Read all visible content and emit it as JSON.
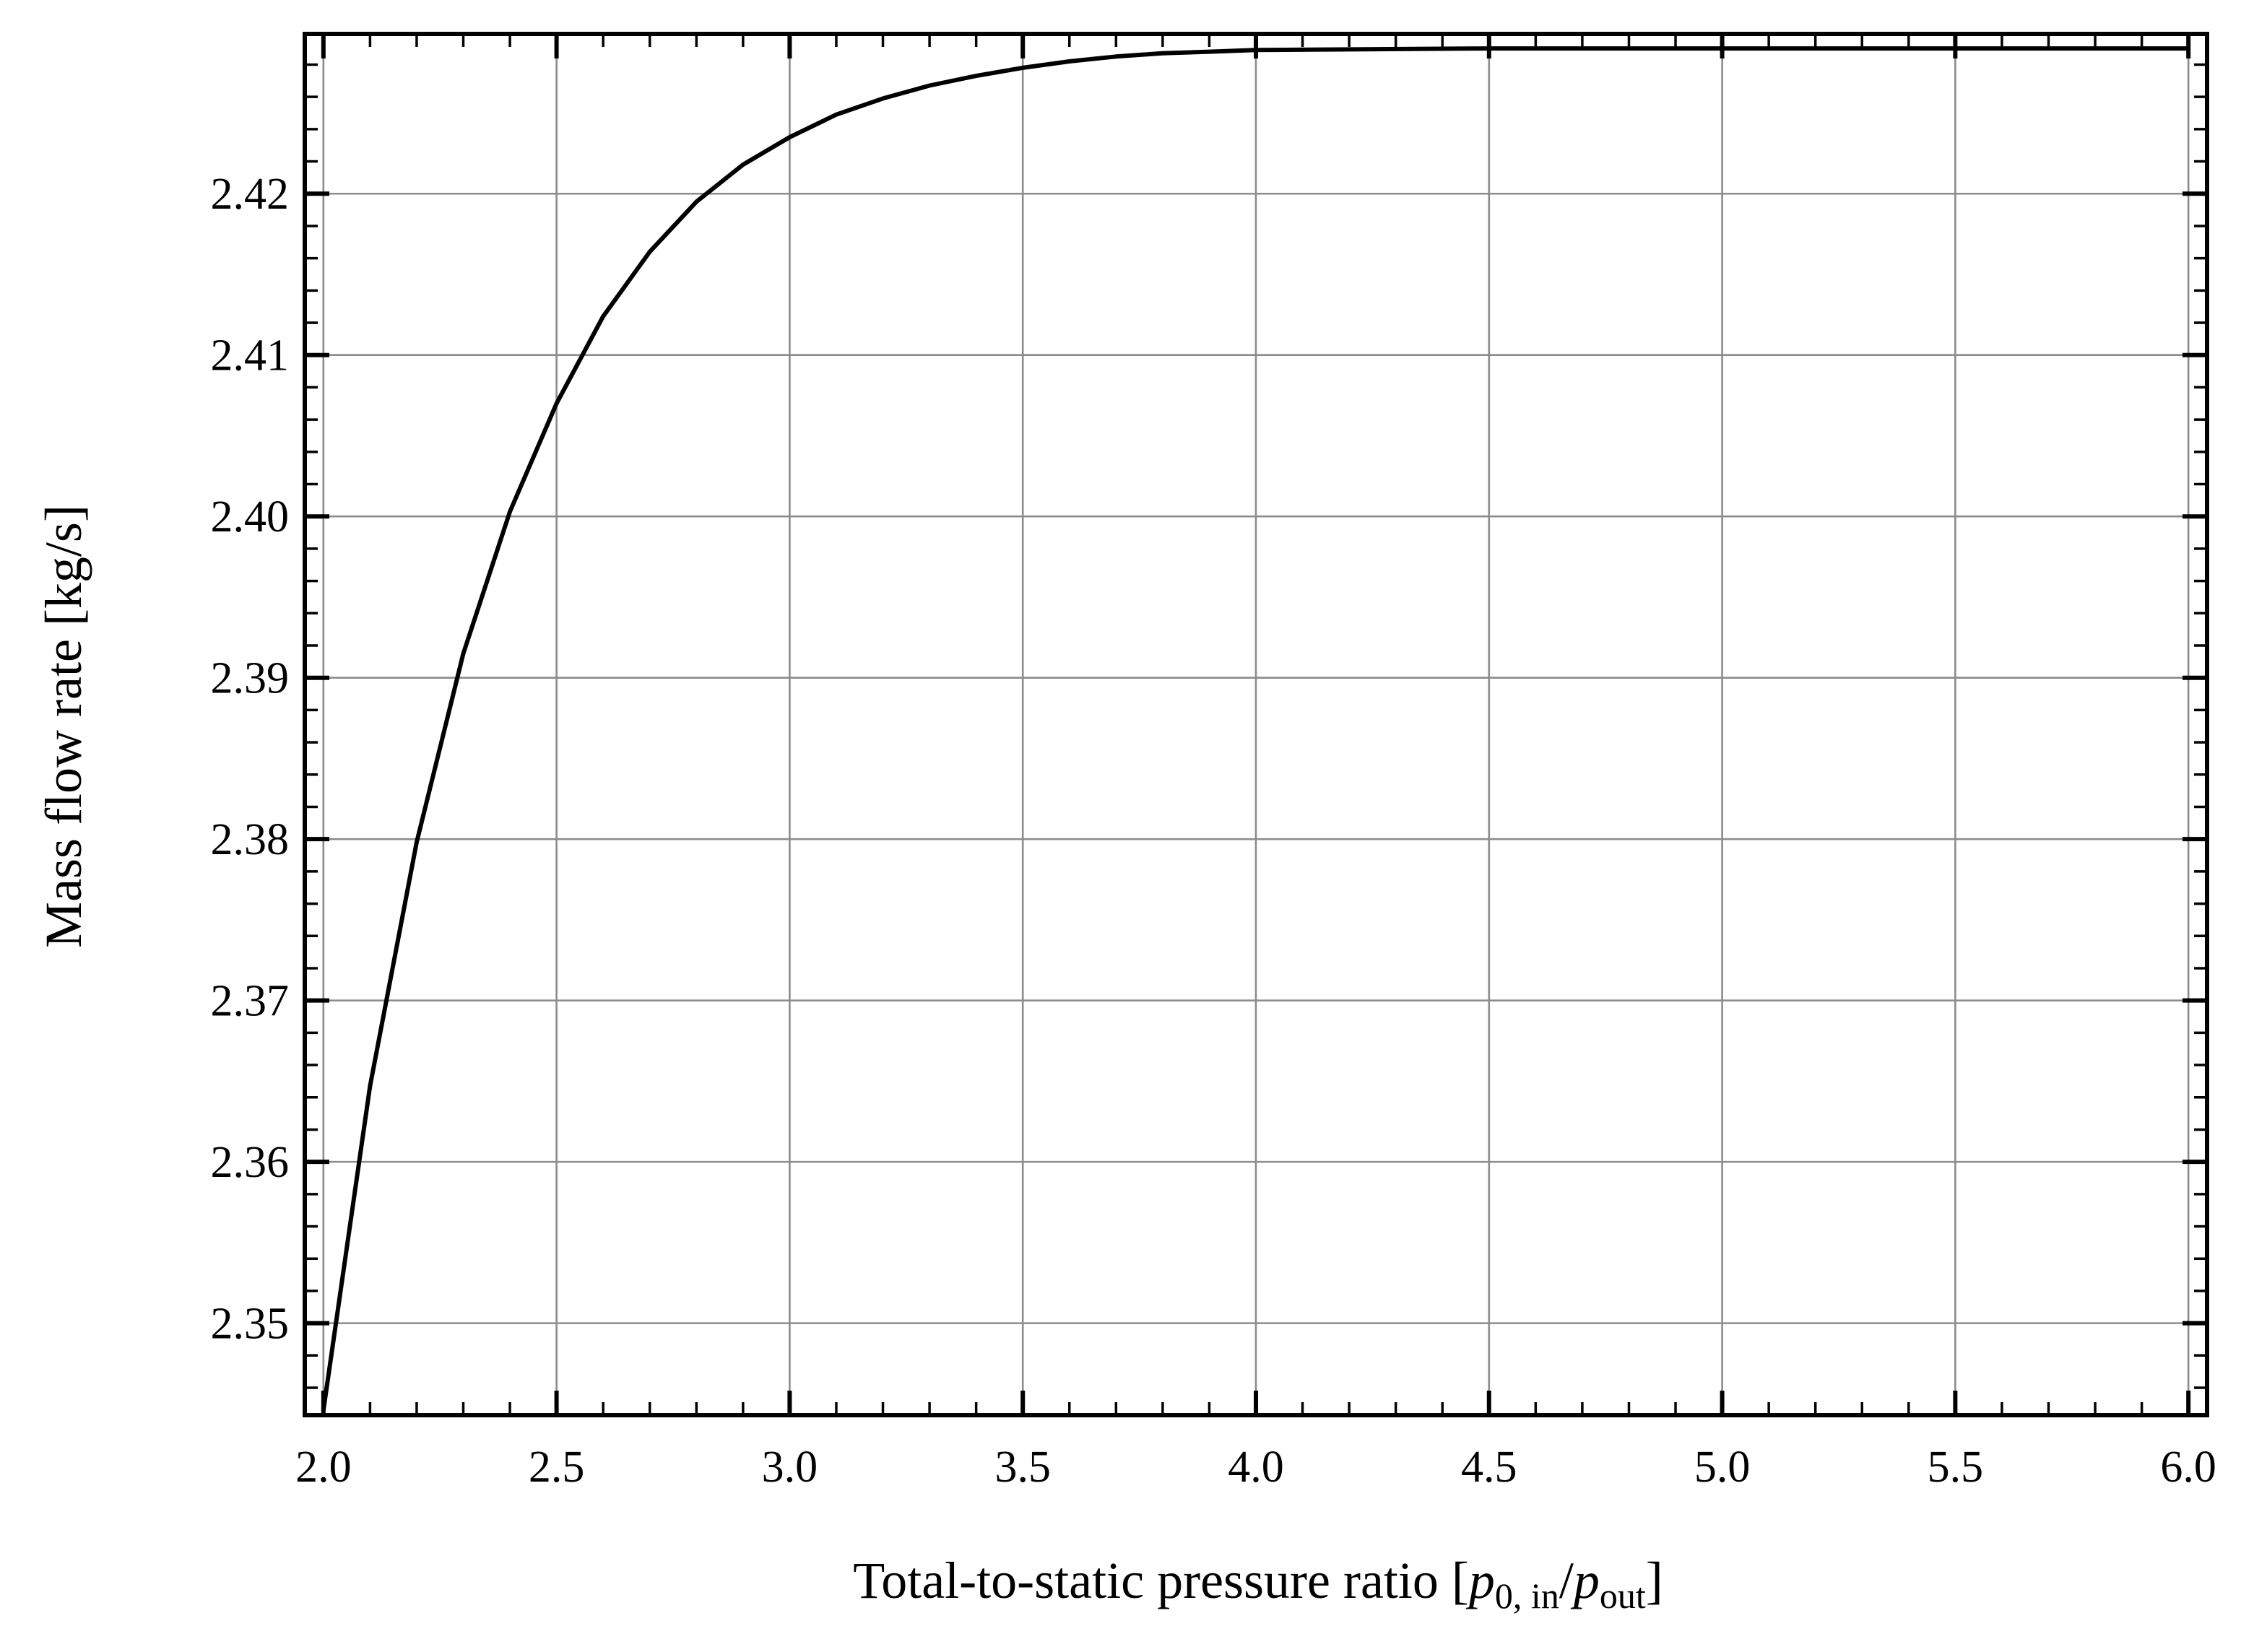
{
  "chart_data": {
    "type": "line",
    "xlabel": {
      "main": "Total-to-static pressure ratio [",
      "p1": "p",
      "sub1": "0, in",
      "slash": "/",
      "p2": "p",
      "sub2": "out",
      "close": "]"
    },
    "ylabel": "Mass flow rate [kg/s]",
    "xlim": [
      1.96,
      6.04
    ],
    "ylim": [
      2.3443,
      2.4299
    ],
    "xticks": [
      {
        "value": 2.0,
        "label": "2.0"
      },
      {
        "value": 2.5,
        "label": "2.5"
      },
      {
        "value": 3.0,
        "label": "3.0"
      },
      {
        "value": 3.5,
        "label": "3.5"
      },
      {
        "value": 4.0,
        "label": "4.0"
      },
      {
        "value": 4.5,
        "label": "4.5"
      },
      {
        "value": 5.0,
        "label": "5.0"
      },
      {
        "value": 5.5,
        "label": "5.5"
      },
      {
        "value": 6.0,
        "label": "6.0"
      }
    ],
    "yticks": [
      {
        "value": 2.35,
        "label": "2.35"
      },
      {
        "value": 2.36,
        "label": "2.36"
      },
      {
        "value": 2.37,
        "label": "2.37"
      },
      {
        "value": 2.38,
        "label": "2.38"
      },
      {
        "value": 2.39,
        "label": "2.39"
      },
      {
        "value": 2.4,
        "label": "2.40"
      },
      {
        "value": 2.41,
        "label": "2.41"
      },
      {
        "value": 2.42,
        "label": "2.42"
      }
    ],
    "x_minor_step": 0.1,
    "y_minor_step": 0.002,
    "grid": true,
    "series": [
      {
        "color": "#000000",
        "x": [
          2.0,
          2.1,
          2.2,
          2.3,
          2.4,
          2.5,
          2.6,
          2.7,
          2.8,
          2.9,
          3.0,
          3.1,
          3.2,
          3.3,
          3.4,
          3.5,
          3.6,
          3.7,
          3.8,
          3.9,
          4.0,
          4.5,
          5.0,
          5.5,
          6.0
        ],
        "y": [
          2.3446,
          2.3647,
          2.3798,
          2.3915,
          2.4003,
          2.407,
          2.4124,
          2.4164,
          2.4195,
          2.4218,
          2.4235,
          2.4249,
          2.4259,
          2.4267,
          2.4273,
          2.4278,
          2.4282,
          2.4285,
          2.4287,
          2.4288,
          2.4289,
          2.429,
          2.429,
          2.429,
          2.429
        ]
      }
    ]
  }
}
